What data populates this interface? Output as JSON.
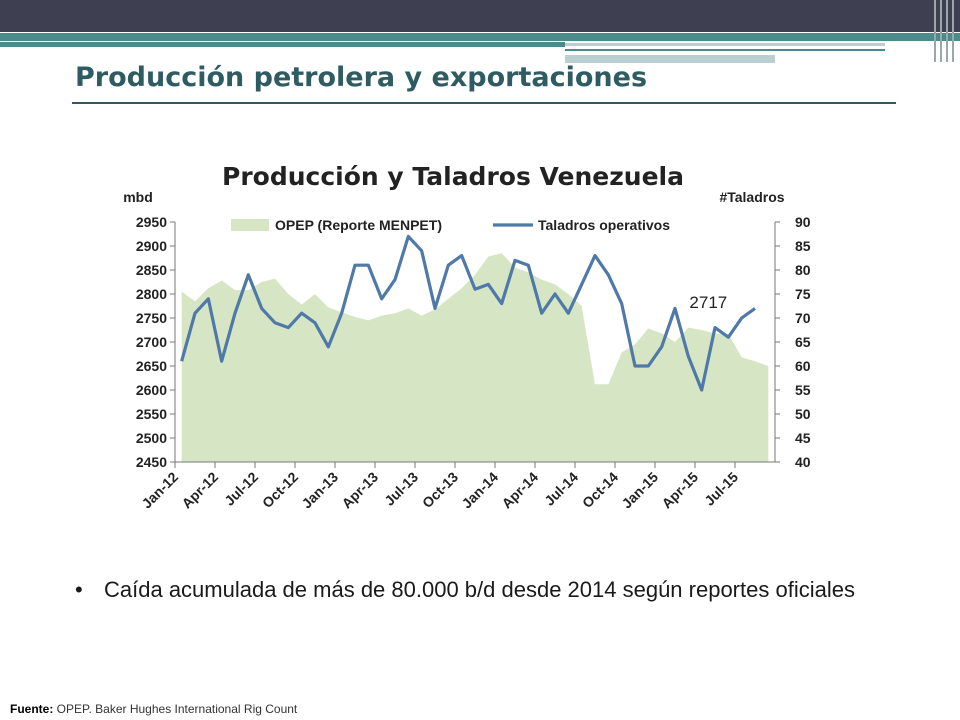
{
  "slide": {
    "title": "Producción petrolera y exportaciones",
    "bullet": "Caída acumulada de más de 80.000 b/d desde 2014 según reportes oficiales",
    "source_label": "Fuente:",
    "source_text": " OPEP. Baker Hughes International Rig Count"
  },
  "colors": {
    "header_dark": "#3f3f52",
    "header_teal": "#4c8b8b",
    "title": "#2f5c63",
    "area_fill": "#d6e6c4",
    "line": "#4f79a8"
  },
  "chart_data": {
    "type": "area",
    "title": "Producción y Taladros Venezuela",
    "ylabel": "mbd",
    "y2label": "#Taladros",
    "ylim": [
      2450,
      2950
    ],
    "y2lim": [
      40,
      90
    ],
    "yticks": [
      "2950",
      "2900",
      "2850",
      "2800",
      "2750",
      "2700",
      "2650",
      "2600",
      "2550",
      "2500",
      "2450"
    ],
    "y2ticks": [
      "90",
      "85",
      "80",
      "75",
      "70",
      "65",
      "60",
      "55",
      "50",
      "45",
      "40"
    ],
    "xtick_labels": [
      "Jan-12",
      "Apr-12",
      "Jul-12",
      "Oct-12",
      "Jan-13",
      "Apr-13",
      "Jul-13",
      "Oct-13",
      "Jan-14",
      "Apr-14",
      "Jul-14",
      "Oct-14",
      "Jan-15",
      "Apr-15",
      "Jul-15"
    ],
    "annotation": {
      "text": "2717",
      "series": "OPEP (Reporte MENPET)",
      "index": 41
    },
    "series": [
      {
        "name": "OPEP (Reporte MENPET)",
        "axis": "left",
        "kind": "area",
        "values": [
          2805,
          2785,
          2812,
          2828,
          2808,
          2808,
          2825,
          2832,
          2800,
          2778,
          2800,
          2772,
          2762,
          2752,
          2745,
          2755,
          2760,
          2770,
          2755,
          2768,
          2790,
          2812,
          2840,
          2878,
          2885,
          2855,
          2845,
          2830,
          2820,
          2800,
          2775,
          2612,
          2612,
          2678,
          2695,
          2728,
          2718,
          2700,
          2730,
          2725,
          2718,
          2717,
          2668,
          2660,
          2650
        ]
      },
      {
        "name": "Taladros operativos",
        "axis": "right",
        "kind": "line",
        "values": [
          61,
          71,
          74,
          61,
          71,
          79,
          72,
          69,
          68,
          71,
          69,
          64,
          71,
          81,
          81,
          74,
          78,
          87,
          84,
          72,
          81,
          83,
          76,
          77,
          73,
          82,
          81,
          71,
          75,
          71,
          77,
          83,
          79,
          73,
          60,
          60,
          64,
          72,
          62,
          55,
          68,
          66,
          70,
          72
        ]
      }
    ]
  }
}
